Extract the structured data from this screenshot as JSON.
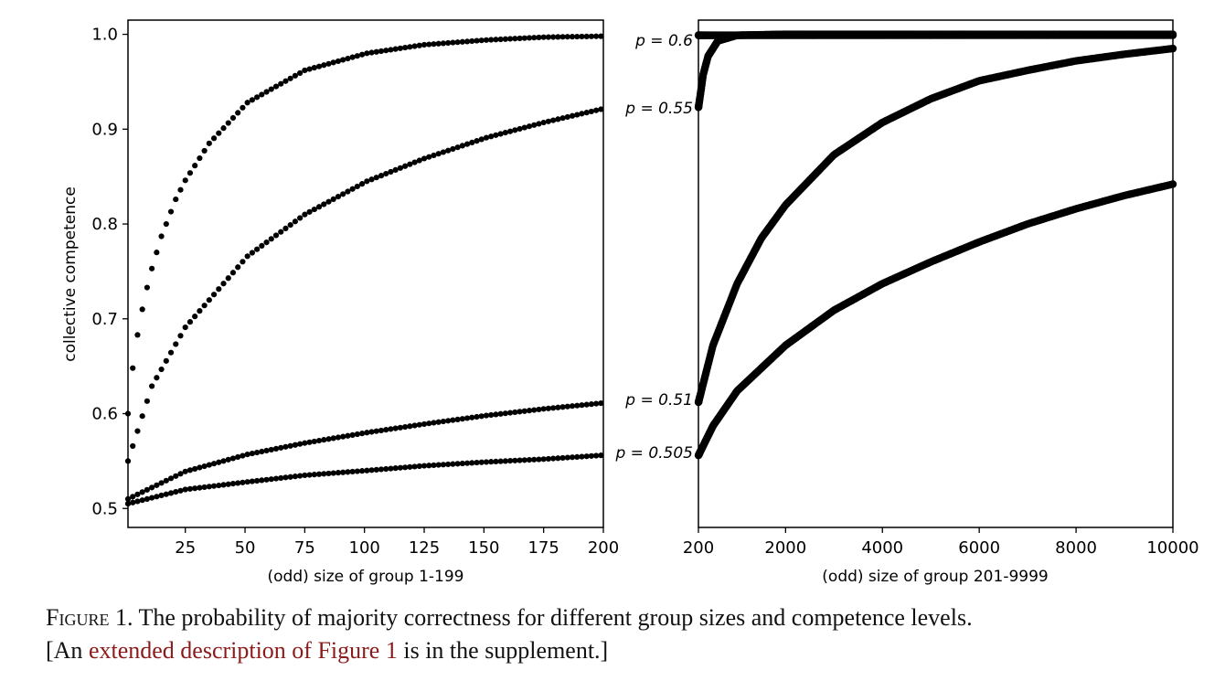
{
  "caption": {
    "figure_label": "Figure 1.",
    "text": "The probability of majority correctness for different group sizes and competence levels.",
    "prefix": "[An",
    "link_text": "extended description of Figure 1",
    "suffix": "is in the supplement.]",
    "link_color": "#8b1a1a"
  },
  "chart_data": [
    {
      "type": "scatter",
      "title": "",
      "xlabel": "(odd) size of group 1-199",
      "ylabel": "collective competence",
      "xlim": [
        1,
        200
      ],
      "ylim": [
        0.48,
        1.015
      ],
      "xticks": [
        25,
        50,
        75,
        100,
        125,
        150,
        175,
        200
      ],
      "yticks": [
        0.5,
        0.6,
        0.7,
        0.8,
        0.9,
        1.0
      ],
      "grid": false,
      "marker_color": "#000000",
      "series": [
        {
          "name": "p = 0.6",
          "x": [
            1,
            3,
            5,
            7,
            9,
            11,
            15,
            21,
            25,
            35,
            51,
            75,
            101,
            125,
            151,
            175,
            199
          ],
          "values": [
            0.6,
            0.648,
            0.683,
            0.71,
            0.733,
            0.753,
            0.787,
            0.826,
            0.846,
            0.885,
            0.928,
            0.962,
            0.98,
            0.989,
            0.994,
            0.997,
            0.998
          ]
        },
        {
          "name": "p = 0.55",
          "x": [
            1,
            11,
            25,
            51,
            75,
            101,
            125,
            151,
            175,
            199
          ],
          "values": [
            0.55,
            0.629,
            0.691,
            0.766,
            0.81,
            0.845,
            0.869,
            0.891,
            0.907,
            0.921
          ]
        },
        {
          "name": "p = 0.51",
          "x": [
            1,
            25,
            51,
            75,
            101,
            125,
            151,
            175,
            199
          ],
          "values": [
            0.51,
            0.539,
            0.557,
            0.569,
            0.58,
            0.589,
            0.598,
            0.605,
            0.611
          ]
        },
        {
          "name": "p = 0.505",
          "x": [
            1,
            25,
            51,
            75,
            101,
            125,
            151,
            175,
            199
          ],
          "values": [
            0.505,
            0.52,
            0.528,
            0.535,
            0.54,
            0.545,
            0.549,
            0.552,
            0.556
          ]
        }
      ]
    },
    {
      "type": "scatter",
      "title": "",
      "xlabel": "(odd) size of group 201-9999",
      "ylabel": "",
      "xlim": [
        200,
        10000
      ],
      "ylim": [
        0.48,
        1.015
      ],
      "xticks": [
        200,
        2000,
        4000,
        6000,
        8000,
        10000
      ],
      "yticks": [],
      "grid": false,
      "marker_color": "#000000",
      "series_labels": [
        "p = 0.6",
        "p = 0.55",
        "p = 0.51",
        "p = 0.505"
      ],
      "series": [
        {
          "name": "p = 0.6",
          "x": [
            201,
            10000
          ],
          "values": [
            0.999,
            0.999
          ]
        },
        {
          "name": "p = 0.55",
          "x": [
            201,
            250,
            300,
            400,
            600,
            1000,
            2000,
            5000,
            10000
          ],
          "values": [
            0.923,
            0.94,
            0.958,
            0.977,
            0.993,
            0.999,
            1.0,
            1.0,
            1.0
          ]
        },
        {
          "name": "p = 0.51",
          "x": [
            201,
            500,
            1000,
            1500,
            2000,
            3000,
            4000,
            5000,
            6000,
            7000,
            8000,
            9000,
            10000
          ],
          "values": [
            0.612,
            0.672,
            0.737,
            0.785,
            0.82,
            0.873,
            0.907,
            0.932,
            0.951,
            0.962,
            0.972,
            0.979,
            0.985
          ]
        },
        {
          "name": "p = 0.505",
          "x": [
            201,
            500,
            1000,
            2000,
            3000,
            4000,
            5000,
            6000,
            7000,
            8000,
            9000,
            10000
          ],
          "values": [
            0.556,
            0.587,
            0.624,
            0.672,
            0.709,
            0.737,
            0.76,
            0.781,
            0.8,
            0.816,
            0.83,
            0.842
          ]
        }
      ]
    }
  ]
}
